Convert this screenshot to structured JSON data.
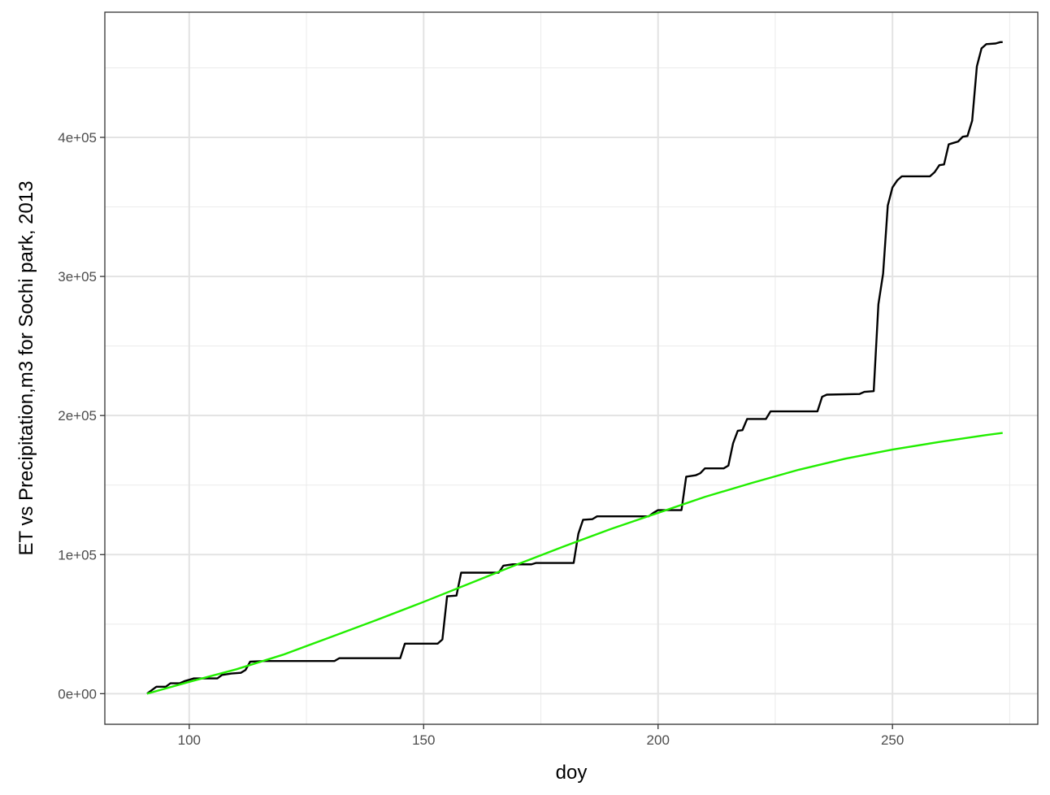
{
  "chart_data": {
    "type": "line",
    "title": "",
    "xlabel": "doy",
    "ylabel": "ET vs Precipitation,m3 for Sochi park, 2013",
    "xlim": [
      82,
      281
    ],
    "ylim": [
      -22000,
      490000
    ],
    "x_ticks": [
      100,
      150,
      200,
      250
    ],
    "x_tick_labels": [
      "100",
      "150",
      "200",
      "250"
    ],
    "y_ticks": [
      0,
      100000,
      200000,
      300000,
      400000
    ],
    "y_tick_labels": [
      "0e+00",
      "1e+05",
      "2e+05",
      "3e+05",
      "4e+05"
    ],
    "grid": true,
    "legend": "none",
    "series": [
      {
        "color": "#000000",
        "points": [
          [
            91,
            0
          ],
          [
            92,
            2500
          ],
          [
            93,
            5000
          ],
          [
            95,
            5000
          ],
          [
            96,
            7500
          ],
          [
            98,
            7500
          ],
          [
            99,
            9000
          ],
          [
            100,
            10000
          ],
          [
            101,
            11000
          ],
          [
            106,
            11000
          ],
          [
            107,
            13500
          ],
          [
            108,
            14000
          ],
          [
            109,
            14500
          ],
          [
            111,
            15000
          ],
          [
            112,
            17000
          ],
          [
            113,
            23000
          ],
          [
            116,
            23500
          ],
          [
            131,
            23500
          ],
          [
            132,
            25500
          ],
          [
            145,
            25500
          ],
          [
            146,
            36000
          ],
          [
            153,
            36000
          ],
          [
            154,
            39000
          ],
          [
            155,
            70000
          ],
          [
            157,
            70500
          ],
          [
            158,
            87000
          ],
          [
            166,
            87000
          ],
          [
            167,
            92000
          ],
          [
            168,
            92500
          ],
          [
            169,
            93000
          ],
          [
            173,
            93000
          ],
          [
            174,
            94000
          ],
          [
            182,
            94000
          ],
          [
            183,
            115000
          ],
          [
            184,
            125000
          ],
          [
            186,
            125500
          ],
          [
            187,
            127500
          ],
          [
            198,
            127500
          ],
          [
            199,
            130000
          ],
          [
            200,
            132000
          ],
          [
            205,
            132000
          ],
          [
            206,
            156000
          ],
          [
            208,
            157000
          ],
          [
            209,
            158500
          ],
          [
            210,
            162000
          ],
          [
            214,
            162000
          ],
          [
            215,
            164000
          ],
          [
            216,
            180000
          ],
          [
            217,
            189000
          ],
          [
            218,
            189500
          ],
          [
            219,
            197500
          ],
          [
            223,
            197500
          ],
          [
            224,
            203000
          ],
          [
            234,
            203000
          ],
          [
            235,
            213500
          ],
          [
            236,
            215000
          ],
          [
            243,
            215500
          ],
          [
            244,
            217000
          ],
          [
            246,
            217500
          ],
          [
            247,
            280000
          ],
          [
            248,
            302000
          ],
          [
            249,
            351000
          ],
          [
            250,
            364000
          ],
          [
            251,
            369000
          ],
          [
            252,
            372000
          ],
          [
            258,
            372000
          ],
          [
            259,
            375000
          ],
          [
            260,
            380000
          ],
          [
            261,
            380500
          ],
          [
            262,
            395000
          ],
          [
            263,
            396000
          ],
          [
            264,
            397000
          ],
          [
            265,
            400500
          ],
          [
            266,
            401000
          ],
          [
            267,
            412000
          ],
          [
            268,
            451000
          ],
          [
            269,
            464000
          ],
          [
            270,
            467000
          ],
          [
            272,
            467500
          ],
          [
            273,
            468500
          ],
          [
            273.5,
            468500
          ]
        ]
      },
      {
        "color": "#22ee00",
        "points": [
          [
            91,
            0
          ],
          [
            100,
            8500
          ],
          [
            110,
            17500
          ],
          [
            120,
            28000
          ],
          [
            130,
            40500
          ],
          [
            140,
            53000
          ],
          [
            150,
            66000
          ],
          [
            160,
            79500
          ],
          [
            170,
            93000
          ],
          [
            180,
            106000
          ],
          [
            190,
            118500
          ],
          [
            200,
            130000
          ],
          [
            210,
            141500
          ],
          [
            220,
            151500
          ],
          [
            230,
            161000
          ],
          [
            240,
            169000
          ],
          [
            250,
            175500
          ],
          [
            260,
            181000
          ],
          [
            270,
            186000
          ],
          [
            273.5,
            187500
          ]
        ]
      }
    ]
  }
}
